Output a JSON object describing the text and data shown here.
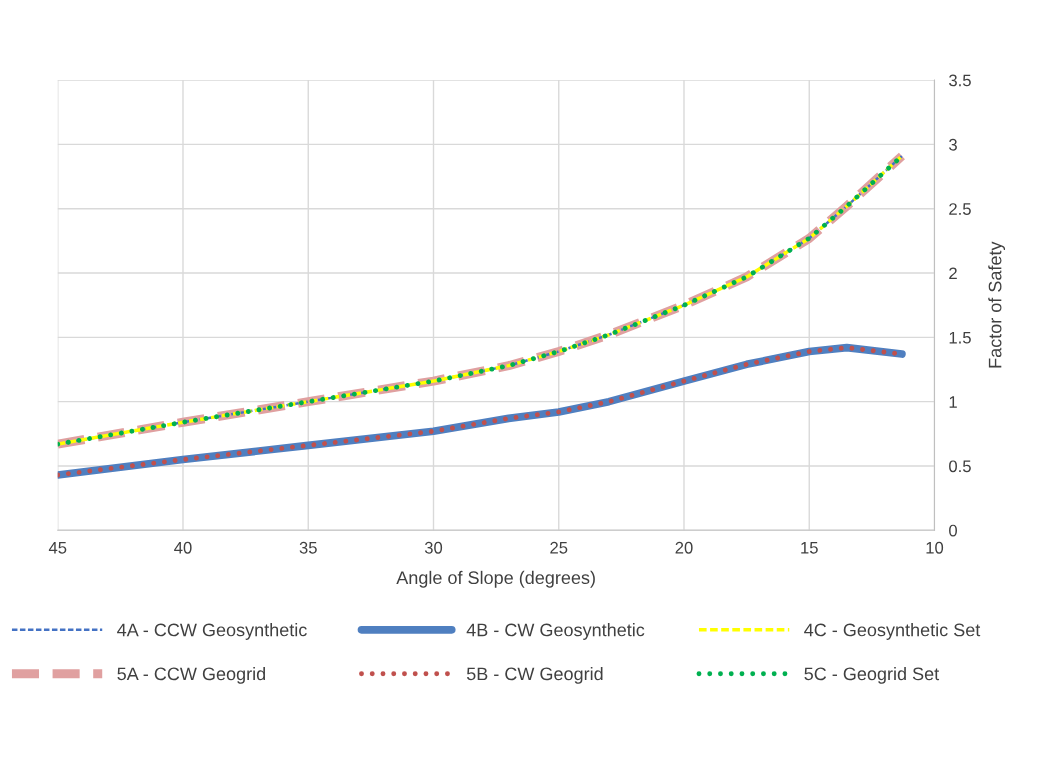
{
  "chart_data": {
    "type": "line",
    "xlabel": "Angle of Slope (degrees)",
    "ylabel": "Factor of Safety",
    "x": [
      45,
      40,
      35,
      30,
      27,
      25,
      23,
      20,
      17.5,
      15,
      13.5,
      11.3
    ],
    "series": [
      {
        "name": "4A - CCW Geosynthetic",
        "color": "#4472c4",
        "line_style": "dashed",
        "values": [
          0.67,
          0.84,
          1.0,
          1.16,
          1.28,
          1.39,
          1.52,
          1.75,
          1.97,
          2.27,
          2.52,
          2.91
        ]
      },
      {
        "name": "4B - CW Geosynthetic",
        "color": "#4f7fc0",
        "line_style": "solid",
        "values": [
          0.43,
          0.55,
          0.66,
          0.77,
          0.87,
          0.92,
          1.0,
          1.16,
          1.29,
          1.39,
          1.42,
          1.37
        ]
      },
      {
        "name": "4C - Geosynthetic Set",
        "color": "#ffff00",
        "line_style": "dashed",
        "values": [
          0.67,
          0.84,
          1.0,
          1.16,
          1.28,
          1.39,
          1.52,
          1.75,
          1.97,
          2.27,
          2.52,
          2.91
        ]
      },
      {
        "name": "5A - CCW Geogrid",
        "color": "#e0a0a0",
        "line_style": "dashed",
        "values": [
          0.67,
          0.84,
          1.0,
          1.16,
          1.28,
          1.39,
          1.52,
          1.75,
          1.97,
          2.27,
          2.52,
          2.91
        ]
      },
      {
        "name": "5B - CW Geogrid",
        "color": "#c0504d",
        "line_style": "dotted",
        "values": [
          0.43,
          0.55,
          0.66,
          0.77,
          0.87,
          0.92,
          1.0,
          1.16,
          1.29,
          1.39,
          1.42,
          1.37
        ]
      },
      {
        "name": "5C - Geogrid Set",
        "color": "#00b050",
        "line_style": "dotted",
        "values": [
          0.67,
          0.84,
          1.0,
          1.16,
          1.28,
          1.39,
          1.52,
          1.75,
          1.97,
          2.27,
          2.52,
          2.91
        ]
      }
    ],
    "xlim": [
      45,
      10
    ],
    "xticks": [
      45,
      40,
      35,
      30,
      25,
      20,
      15,
      10
    ],
    "ylim": [
      0,
      3.5
    ],
    "yticks": [
      0,
      0.5,
      1,
      1.5,
      2,
      2.5,
      3,
      3.5
    ],
    "grid": true,
    "legend": "bottom",
    "marker": "none"
  }
}
